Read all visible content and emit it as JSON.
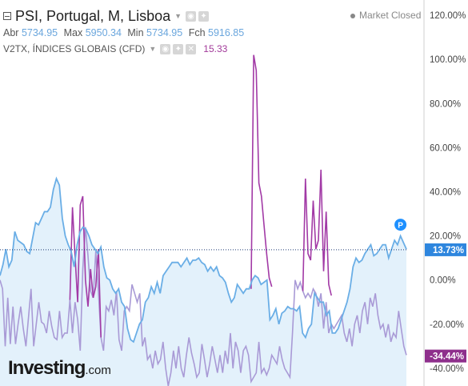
{
  "header": {
    "title": "PSI, Portugal, M, Lisboa",
    "ohlc": [
      {
        "label": "Abr",
        "value": "5734.95"
      },
      {
        "label": "Max",
        "value": "5950.34"
      },
      {
        "label": "Min",
        "value": "5734.95"
      },
      {
        "label": "Fch",
        "value": "5916.85"
      }
    ],
    "market_status": "Market Closed"
  },
  "indicator": {
    "name": "V2TX, ÍNDICES GLOBAIS (CFD)",
    "value": "15.33"
  },
  "brand": {
    "name": "Investing",
    "suffix": ".com"
  },
  "chart_data": {
    "type": "line",
    "y_unit": "%",
    "ylim": [
      -48,
      124
    ],
    "y_ticks": [
      "120.00%",
      "100.00%",
      "80.00%",
      "60.00%",
      "40.00%",
      "20.00%",
      "0.00%",
      "-20.00%",
      "-40.00%"
    ],
    "last_values": [
      {
        "series": "PSI",
        "label": "13.73%",
        "color": "#2e86de"
      },
      {
        "series": "V2TX",
        "label": "-34.44%",
        "color": "#8e2f8c"
      }
    ],
    "marker": "P",
    "grid": false,
    "series": [
      {
        "name": "PSI",
        "color": "#6aaee6",
        "fill": "#e3f1fb",
        "values": [
          2,
          7,
          14,
          6,
          9,
          22,
          18,
          17,
          16,
          13,
          12,
          19,
          26,
          25,
          28,
          31,
          31,
          33,
          41,
          46,
          43,
          28,
          20,
          16,
          13,
          6,
          16,
          22,
          24,
          23,
          20,
          16,
          14,
          12,
          15,
          6,
          1,
          0,
          -4,
          -6,
          -4,
          -10,
          -12,
          -22,
          -27,
          -28,
          -24,
          -20,
          -18,
          -10,
          -8,
          -3,
          -6,
          -1,
          -6,
          2,
          4,
          6,
          8,
          8,
          8,
          6,
          8,
          10,
          7,
          9,
          9,
          10,
          8,
          7,
          4,
          6,
          4,
          6,
          2,
          1,
          -1,
          -6,
          -10,
          -8,
          -2,
          -4,
          -6,
          -4,
          -4,
          0,
          2,
          1,
          -2,
          -1,
          0,
          -18,
          -16,
          -13,
          -20,
          -15,
          -14,
          -12,
          -13,
          -13,
          -14,
          -12,
          -24,
          -26,
          -22,
          -20,
          -6,
          -8,
          -10,
          -10,
          -16,
          -14,
          -24,
          -24,
          -22,
          -18,
          -14,
          -10,
          -4,
          6,
          10,
          8,
          9,
          12,
          14,
          16,
          11,
          12,
          14,
          16,
          16,
          10,
          14,
          18,
          16,
          20,
          17,
          14
        ]
      },
      {
        "name": "V2TX",
        "color": "#a99ad6",
        "highlight": "#a23aa6",
        "values": [
          0,
          -4,
          -30,
          -8,
          -29,
          -12,
          -29,
          -20,
          -12,
          -22,
          -30,
          -17,
          -4,
          -30,
          -20,
          -10,
          -19,
          -20,
          -24,
          -14,
          -21,
          -26,
          -27,
          -14,
          -26,
          -24,
          -24,
          -9,
          -24,
          -10,
          -18,
          -32,
          5,
          24,
          11,
          -5,
          -8,
          13,
          -5,
          -26,
          -32,
          -12,
          -14,
          -9,
          -16,
          -5,
          -27,
          -32,
          -14,
          -12,
          -14,
          -2,
          -6,
          -10,
          -6,
          -30,
          -26,
          -36,
          -34,
          -40,
          -32,
          -38,
          -36,
          -28,
          -40,
          -48,
          -42,
          -32,
          -40,
          -30,
          -40,
          -44,
          -34,
          -26,
          -33,
          -38,
          -44,
          -42,
          -29,
          -36,
          -44,
          -38,
          -30,
          -36,
          -42,
          -34,
          -42,
          -32,
          -38,
          -24,
          -40,
          -28,
          -32,
          -42,
          -32,
          -30,
          -34,
          -46,
          -44,
          -42,
          -28,
          -42,
          -40,
          -43,
          -40,
          -34,
          -36,
          -38,
          -30,
          -36,
          -40,
          -42,
          -44,
          -24,
          0,
          -4,
          -1,
          -5,
          -8,
          -6,
          -8,
          -4,
          -6,
          -12,
          -6,
          -22,
          -10,
          -24,
          -20,
          -22,
          -20,
          -18,
          -16,
          -24,
          -28,
          -22,
          -30,
          -20,
          -16,
          -24,
          -14,
          -10,
          -20,
          -8,
          -12,
          -6,
          -16,
          -22,
          -20,
          -26,
          -20,
          -28,
          -24,
          -26,
          -14,
          -22,
          -30,
          -34
        ],
        "spikes": [
          {
            "from": 27,
            "to": 39,
            "values": [
              -9,
              33,
              11,
              -10,
              34,
              38,
              0,
              -12,
              5,
              -8,
              -3,
              14,
              -26
            ]
          },
          {
            "from": 97,
            "to": 105,
            "values": [
              -4,
              102,
              95,
              44,
              38,
              25,
              12,
              1,
              -3
            ]
          },
          {
            "from": 117,
            "to": 128,
            "values": [
              -5,
              46,
              12,
              9,
              36,
              14,
              18,
              50,
              4,
              31,
              -2,
              -7
            ]
          }
        ]
      }
    ]
  }
}
